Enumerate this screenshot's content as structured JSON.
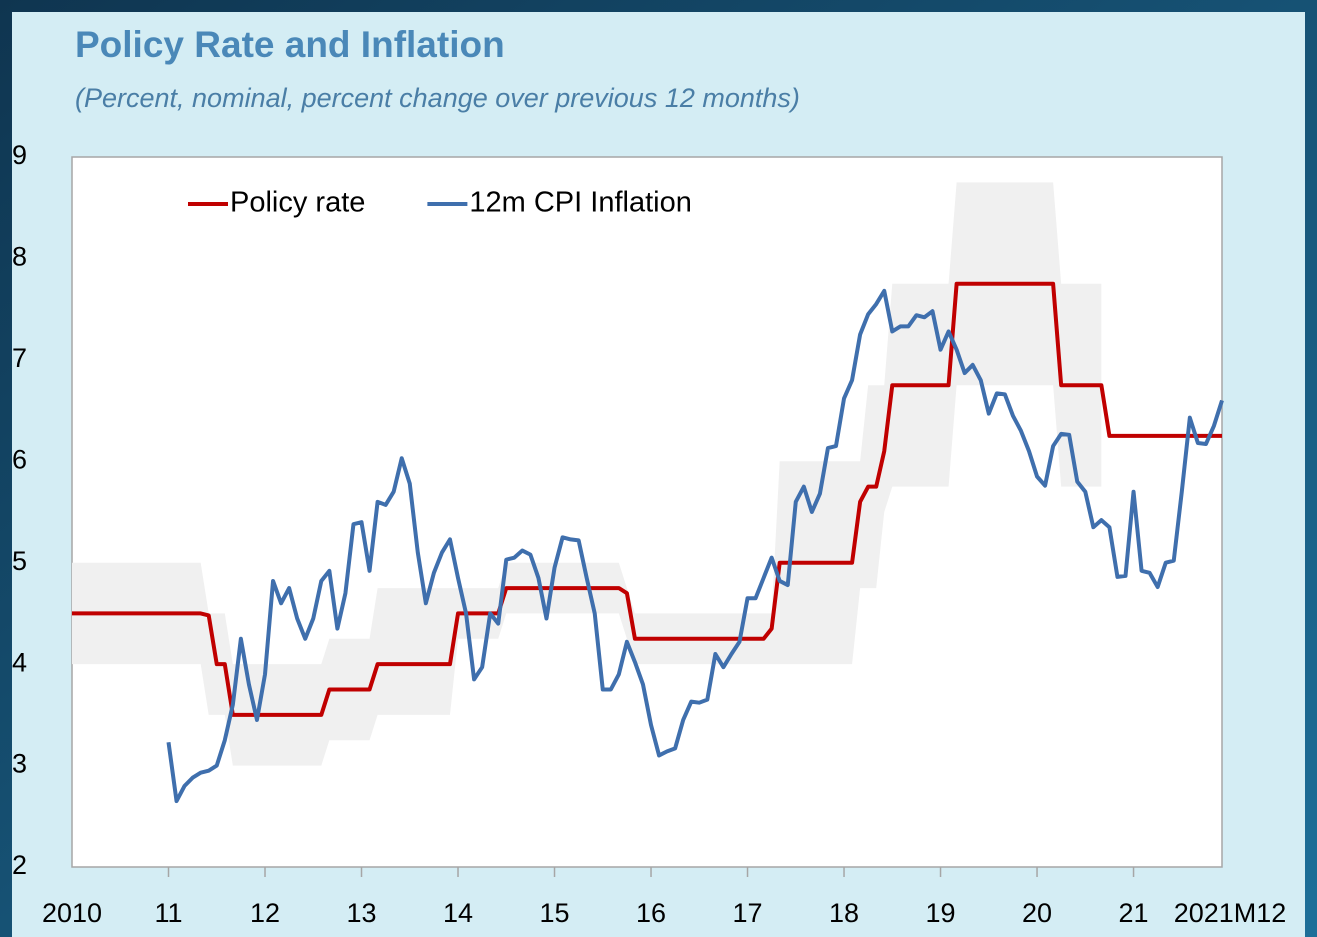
{
  "chart_data": {
    "type": "line",
    "title": "Policy Rate and Inflation",
    "subtitle": "(Percent, nominal, percent change over previous 12 months)",
    "legend": "upper left",
    "categories": [
      "2010",
      null,
      null,
      null,
      null,
      null,
      null,
      null,
      null,
      null,
      null,
      null,
      "11",
      null,
      null,
      null,
      null,
      null,
      null,
      null,
      null,
      null,
      null,
      null,
      "12",
      null,
      null,
      null,
      null,
      null,
      null,
      null,
      null,
      null,
      null,
      null,
      "13",
      null,
      null,
      null,
      null,
      null,
      null,
      null,
      null,
      null,
      null,
      null,
      "14",
      null,
      null,
      null,
      null,
      null,
      null,
      null,
      null,
      null,
      null,
      null,
      "15",
      null,
      null,
      null,
      null,
      null,
      null,
      null,
      null,
      null,
      null,
      null,
      "16",
      null,
      null,
      null,
      null,
      null,
      null,
      null,
      null,
      null,
      null,
      null,
      "17",
      null,
      null,
      null,
      null,
      null,
      null,
      null,
      null,
      null,
      null,
      null,
      "18",
      null,
      null,
      null,
      null,
      null,
      null,
      null,
      null,
      null,
      null,
      null,
      "19",
      null,
      null,
      null,
      null,
      null,
      null,
      null,
      null,
      null,
      null,
      null,
      "20",
      null,
      null,
      null,
      null,
      null,
      null,
      null,
      null,
      null,
      null,
      null,
      "21",
      null,
      null,
      null,
      null,
      null,
      null,
      null,
      null,
      null,
      null,
      "2021M12"
    ],
    "ylim": [
      2,
      9
    ],
    "yticks": [
      2,
      3,
      4,
      5,
      6,
      7,
      8,
      9
    ],
    "series": [
      {
        "name": "Policy rate",
        "color": "#c00000",
        "values": [
          4.5,
          4.5,
          4.5,
          4.5,
          4.5,
          4.5,
          4.5,
          4.5,
          4.5,
          4.5,
          4.5,
          4.5,
          4.5,
          4.5,
          4.5,
          4.5,
          4.5,
          4.48,
          4.0,
          4.0,
          3.5,
          3.5,
          3.5,
          3.5,
          3.5,
          3.5,
          3.5,
          3.5,
          3.5,
          3.5,
          3.5,
          3.5,
          3.75,
          3.75,
          3.75,
          3.75,
          3.75,
          3.75,
          4.0,
          4.0,
          4.0,
          4.0,
          4.0,
          4.0,
          4.0,
          4.0,
          4.0,
          4.0,
          4.5,
          4.5,
          4.5,
          4.5,
          4.5,
          4.5,
          4.75,
          4.75,
          4.75,
          4.75,
          4.75,
          4.75,
          4.75,
          4.75,
          4.75,
          4.75,
          4.75,
          4.75,
          4.75,
          4.75,
          4.75,
          4.7,
          4.25,
          4.25,
          4.25,
          4.25,
          4.25,
          4.25,
          4.25,
          4.25,
          4.25,
          4.25,
          4.25,
          4.25,
          4.25,
          4.25,
          4.25,
          4.25,
          4.25,
          4.35,
          5.0,
          5.0,
          5.0,
          5.0,
          5.0,
          5.0,
          5.0,
          5.0,
          5.0,
          5.0,
          5.6,
          5.75,
          5.75,
          6.1,
          6.75,
          6.75,
          6.75,
          6.75,
          6.75,
          6.75,
          6.75,
          6.75,
          7.75,
          7.75,
          7.75,
          7.75,
          7.75,
          7.75,
          7.75,
          7.75,
          7.75,
          7.75,
          7.75,
          7.75,
          7.75,
          6.75,
          6.75,
          6.75,
          6.75,
          6.75,
          6.75,
          6.25,
          6.25,
          6.25,
          6.25,
          6.25,
          6.25,
          6.25,
          6.25,
          6.25,
          6.25,
          6.25,
          6.25,
          6.25,
          6.25,
          6.25
        ]
      },
      {
        "name": "12m CPI Inflation",
        "color": "#3f6fad",
        "values": [
          null,
          null,
          null,
          null,
          null,
          null,
          null,
          null,
          null,
          null,
          null,
          null,
          3.23,
          2.65,
          2.8,
          2.88,
          2.93,
          2.95,
          3.0,
          3.25,
          3.6,
          4.25,
          3.8,
          3.45,
          3.9,
          4.82,
          4.6,
          4.75,
          4.45,
          4.25,
          4.45,
          4.82,
          4.92,
          4.35,
          4.7,
          5.38,
          5.4,
          4.92,
          5.6,
          5.57,
          5.7,
          6.03,
          5.78,
          5.1,
          4.6,
          4.9,
          5.1,
          5.23,
          4.85,
          4.5,
          3.85,
          3.97,
          4.5,
          4.4,
          5.03,
          5.05,
          5.12,
          5.08,
          4.85,
          4.45,
          4.95,
          5.25,
          5.23,
          5.22,
          4.85,
          4.5,
          3.75,
          3.75,
          3.9,
          4.22,
          4.02,
          3.8,
          3.4,
          3.1,
          3.14,
          3.17,
          3.45,
          3.63,
          3.62,
          3.65,
          4.1,
          3.97,
          4.1,
          4.22,
          4.65,
          4.65,
          4.85,
          5.05,
          4.82,
          4.78,
          5.6,
          5.75,
          5.5,
          5.68,
          6.13,
          6.15,
          6.62,
          6.8,
          7.25,
          7.45,
          7.55,
          7.68,
          7.28,
          7.33,
          7.33,
          7.44,
          7.42,
          7.48,
          7.1,
          7.28,
          7.1,
          6.87,
          6.95,
          6.8,
          6.47,
          6.67,
          6.66,
          6.45,
          6.3,
          6.1,
          5.85,
          5.76,
          6.15,
          6.27,
          6.26,
          5.8,
          5.7,
          5.35,
          5.42,
          5.35,
          4.86,
          4.87,
          5.7,
          4.92,
          4.9,
          4.76,
          5.0,
          5.02,
          5.7,
          6.43,
          6.18,
          6.17,
          6.35,
          6.6
        ]
      }
    ],
    "band": {
      "color": "#f0f0f0",
      "upper": [
        5.0,
        5.0,
        5.0,
        5.0,
        5.0,
        5.0,
        5.0,
        5.0,
        5.0,
        5.0,
        5.0,
        5.0,
        5.0,
        5.0,
        5.0,
        5.0,
        5.0,
        4.5,
        4.5,
        4.5,
        4.0,
        4.0,
        4.0,
        4.0,
        4.0,
        4.0,
        4.0,
        4.0,
        4.0,
        4.0,
        4.0,
        4.0,
        4.25,
        4.25,
        4.25,
        4.25,
        4.25,
        4.25,
        4.75,
        4.75,
        4.75,
        4.75,
        4.75,
        4.75,
        4.75,
        4.75,
        4.75,
        4.75,
        4.75,
        4.75,
        4.75,
        4.75,
        4.75,
        4.75,
        5.0,
        5.0,
        5.0,
        5.0,
        5.0,
        5.0,
        5.0,
        5.0,
        5.0,
        5.0,
        5.0,
        5.0,
        5.0,
        5.0,
        5.0,
        4.75,
        4.5,
        4.5,
        4.5,
        4.5,
        4.5,
        4.5,
        4.5,
        4.5,
        4.5,
        4.5,
        4.5,
        4.5,
        4.5,
        4.5,
        4.5,
        4.5,
        4.5,
        4.5,
        6.0,
        6.0,
        6.0,
        6.0,
        6.0,
        6.0,
        6.0,
        6.0,
        6.0,
        6.0,
        6.0,
        6.75,
        6.75,
        6.75,
        7.75,
        7.75,
        7.75,
        7.75,
        7.75,
        7.75,
        7.75,
        7.75,
        8.75,
        8.75,
        8.75,
        8.75,
        8.75,
        8.75,
        8.75,
        8.75,
        8.75,
        8.75,
        8.75,
        8.75,
        8.75,
        7.75,
        7.75,
        7.75,
        7.75,
        7.75,
        7.75,
        null,
        null,
        null,
        null,
        null,
        null,
        null,
        null,
        null,
        null,
        null,
        null,
        null,
        null,
        null
      ],
      "lower": [
        4.0,
        4.0,
        4.0,
        4.0,
        4.0,
        4.0,
        4.0,
        4.0,
        4.0,
        4.0,
        4.0,
        4.0,
        4.0,
        4.0,
        4.0,
        4.0,
        4.0,
        3.5,
        3.5,
        3.5,
        3.0,
        3.0,
        3.0,
        3.0,
        3.0,
        3.0,
        3.0,
        3.0,
        3.0,
        3.0,
        3.0,
        3.0,
        3.25,
        3.25,
        3.25,
        3.25,
        3.25,
        3.25,
        3.5,
        3.5,
        3.5,
        3.5,
        3.5,
        3.5,
        3.5,
        3.5,
        3.5,
        3.5,
        4.25,
        4.25,
        4.25,
        4.25,
        4.25,
        4.25,
        4.5,
        4.5,
        4.5,
        4.5,
        4.5,
        4.5,
        4.5,
        4.5,
        4.5,
        4.5,
        4.5,
        4.5,
        4.5,
        4.5,
        4.5,
        4.25,
        4.0,
        4.0,
        4.0,
        4.0,
        4.0,
        4.0,
        4.0,
        4.0,
        4.0,
        4.0,
        4.0,
        4.0,
        4.0,
        4.0,
        4.0,
        4.0,
        4.0,
        4.0,
        4.0,
        4.0,
        4.0,
        4.0,
        4.0,
        4.0,
        4.0,
        4.0,
        4.0,
        4.0,
        4.75,
        4.75,
        4.75,
        5.5,
        5.75,
        5.75,
        5.75,
        5.75,
        5.75,
        5.75,
        5.75,
        5.75,
        6.75,
        6.75,
        6.75,
        6.75,
        6.75,
        6.75,
        6.75,
        6.75,
        6.75,
        6.75,
        6.75,
        6.75,
        6.75,
        5.75,
        5.75,
        5.75,
        5.75,
        5.75,
        5.75,
        null,
        null,
        null,
        null,
        null,
        null,
        null,
        null,
        null,
        null,
        null,
        null,
        null,
        null,
        null
      ]
    }
  }
}
